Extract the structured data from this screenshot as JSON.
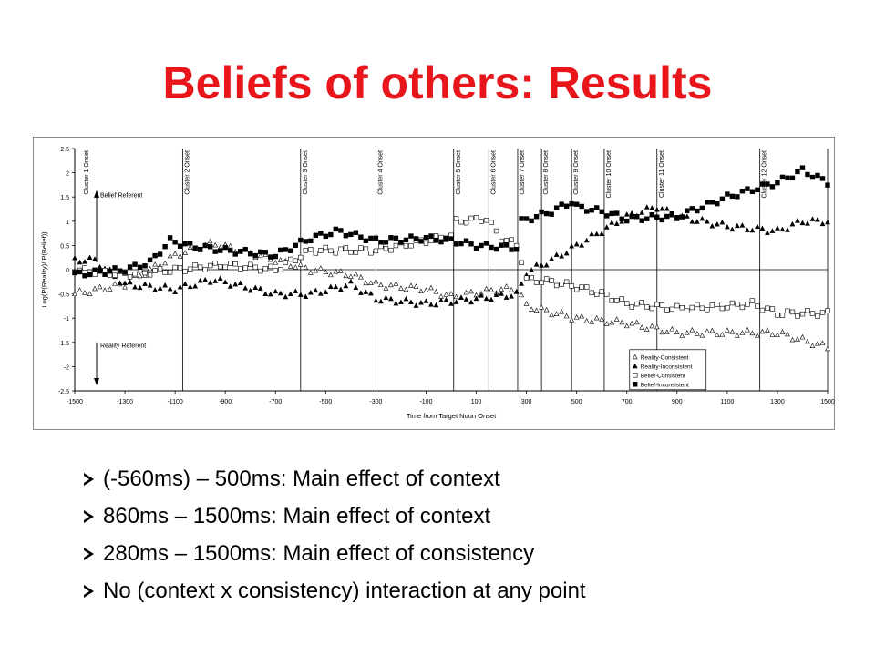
{
  "slide": {
    "title": "Beliefs of others: Results"
  },
  "bullets": [
    "(-560ms) – 500ms: Main effect of context",
    "860ms – 1500ms: Main effect of context",
    "280ms – 1500ms: Main effect of consistency",
    "No (context x consistency) interaction at any point"
  ],
  "chart_data": {
    "type": "scatter",
    "xlabel": "Time from Target Noun Onset",
    "ylabel": "Log(P(Reality)/ P(Belief))",
    "xlim": [
      -1500,
      1500
    ],
    "ylim": [
      -2.5,
      2.5
    ],
    "xticks": [
      -1500,
      -1300,
      -1100,
      -900,
      -700,
      -500,
      -300,
      -100,
      100,
      300,
      500,
      700,
      900,
      1100,
      1300,
      1500
    ],
    "yticks": [
      2.5,
      2,
      1.5,
      1,
      0.5,
      0,
      -0.5,
      -1,
      -1.5,
      -2,
      -2.5
    ],
    "ytick_labels": [
      "2.5",
      "2",
      "1.5",
      "1",
      "0.5",
      "0",
      "-0.5",
      "-1",
      "-1.5",
      "-2",
      "-2.5"
    ],
    "grid": false,
    "legend_position": "bottom-right",
    "colors": {
      "series": "#000000",
      "title": "#e8161b"
    },
    "clusters": [
      {
        "label": "Cluster 1 Onset",
        "x": -1500
      },
      {
        "label": "Cluster 2 Onset",
        "x": -1070
      },
      {
        "label": "Cluster 3 Onset",
        "x": -600
      },
      {
        "label": "Cluster 4 Onset",
        "x": -300
      },
      {
        "label": "Cluster 5 Onset",
        "x": 10
      },
      {
        "label": "Cluster 6 Onset",
        "x": 150
      },
      {
        "label": "Cluster 7 Onset",
        "x": 265
      },
      {
        "label": "Cluster 8 Onset",
        "x": 360
      },
      {
        "label": "Cluster 9 Onset",
        "x": 480
      },
      {
        "label": "Cluster 10 Onset",
        "x": 610
      },
      {
        "label": "Cluster 11 Onset",
        "x": 820
      },
      {
        "label": "Cluster 12 Onset",
        "x": 1230
      }
    ],
    "annotations": [
      {
        "text": "Belief Referent",
        "arrow": "up"
      },
      {
        "text": "Reality Referent",
        "arrow": "down"
      }
    ],
    "series": [
      {
        "name": "Reality-Consistent",
        "marker": "triangle-open",
        "anchors": [
          [
            -1500,
            -0.5
          ],
          [
            -1300,
            -0.3
          ],
          [
            -1100,
            0.3
          ],
          [
            -950,
            0.55
          ],
          [
            -700,
            0.2
          ],
          [
            -560,
            0.0
          ],
          [
            -400,
            -0.1
          ],
          [
            -300,
            -0.3
          ],
          [
            -100,
            -0.4
          ],
          [
            0,
            -0.55
          ],
          [
            200,
            -0.4
          ],
          [
            265,
            -0.4
          ],
          [
            300,
            -0.75
          ],
          [
            500,
            -1.0
          ],
          [
            700,
            -1.1
          ],
          [
            900,
            -1.3
          ],
          [
            1100,
            -1.3
          ],
          [
            1300,
            -1.3
          ],
          [
            1500,
            -1.6
          ]
        ]
      },
      {
        "name": "Reality-Inconsistent",
        "marker": "triangle-filled",
        "anchors": [
          [
            -1500,
            0.2
          ],
          [
            -1420,
            0.2
          ],
          [
            -1300,
            -0.3
          ],
          [
            -1100,
            -0.4
          ],
          [
            -950,
            -0.2
          ],
          [
            -700,
            -0.5
          ],
          [
            -560,
            -0.5
          ],
          [
            -400,
            -0.3
          ],
          [
            -300,
            -0.6
          ],
          [
            -100,
            -0.7
          ],
          [
            100,
            -0.6
          ],
          [
            265,
            -0.5
          ],
          [
            300,
            -0.05
          ],
          [
            400,
            0.2
          ],
          [
            500,
            0.5
          ],
          [
            600,
            0.8
          ],
          [
            700,
            1.1
          ],
          [
            820,
            1.3
          ],
          [
            900,
            1.1
          ],
          [
            1100,
            0.9
          ],
          [
            1300,
            0.8
          ],
          [
            1400,
            1.0
          ],
          [
            1500,
            1.0
          ]
        ]
      },
      {
        "name": "Belief-Consistent",
        "marker": "square-open",
        "anchors": [
          [
            -1500,
            0.0
          ],
          [
            -1300,
            -0.1
          ],
          [
            -1100,
            0.0
          ],
          [
            -900,
            0.1
          ],
          [
            -700,
            0.0
          ],
          [
            -560,
            0.4
          ],
          [
            -450,
            0.4
          ],
          [
            -300,
            0.4
          ],
          [
            -100,
            0.6
          ],
          [
            0,
            0.7
          ],
          [
            20,
            1.0
          ],
          [
            140,
            1.05
          ],
          [
            200,
            0.65
          ],
          [
            265,
            0.5
          ],
          [
            300,
            -0.2
          ],
          [
            400,
            -0.25
          ],
          [
            500,
            -0.35
          ],
          [
            600,
            -0.5
          ],
          [
            700,
            -0.7
          ],
          [
            900,
            -0.8
          ],
          [
            1100,
            -0.75
          ],
          [
            1200,
            -0.7
          ],
          [
            1300,
            -0.9
          ],
          [
            1500,
            -0.9
          ]
        ]
      },
      {
        "name": "Belief-Inconsistent",
        "marker": "square-filled",
        "anchors": [
          [
            -1500,
            -0.1
          ],
          [
            -1300,
            0.0
          ],
          [
            -1200,
            0.15
          ],
          [
            -1120,
            0.6
          ],
          [
            -1050,
            0.5
          ],
          [
            -900,
            0.4
          ],
          [
            -700,
            0.3
          ],
          [
            -560,
            0.65
          ],
          [
            -450,
            0.8
          ],
          [
            -300,
            0.6
          ],
          [
            -100,
            0.65
          ],
          [
            0,
            0.6
          ],
          [
            100,
            0.5
          ],
          [
            265,
            0.45
          ],
          [
            280,
            1.0
          ],
          [
            400,
            1.2
          ],
          [
            480,
            1.4
          ],
          [
            500,
            1.3
          ],
          [
            600,
            1.2
          ],
          [
            700,
            1.05
          ],
          [
            900,
            1.1
          ],
          [
            1100,
            1.5
          ],
          [
            1230,
            1.7
          ],
          [
            1300,
            1.8
          ],
          [
            1400,
            2.05
          ],
          [
            1500,
            1.8
          ]
        ]
      }
    ]
  }
}
